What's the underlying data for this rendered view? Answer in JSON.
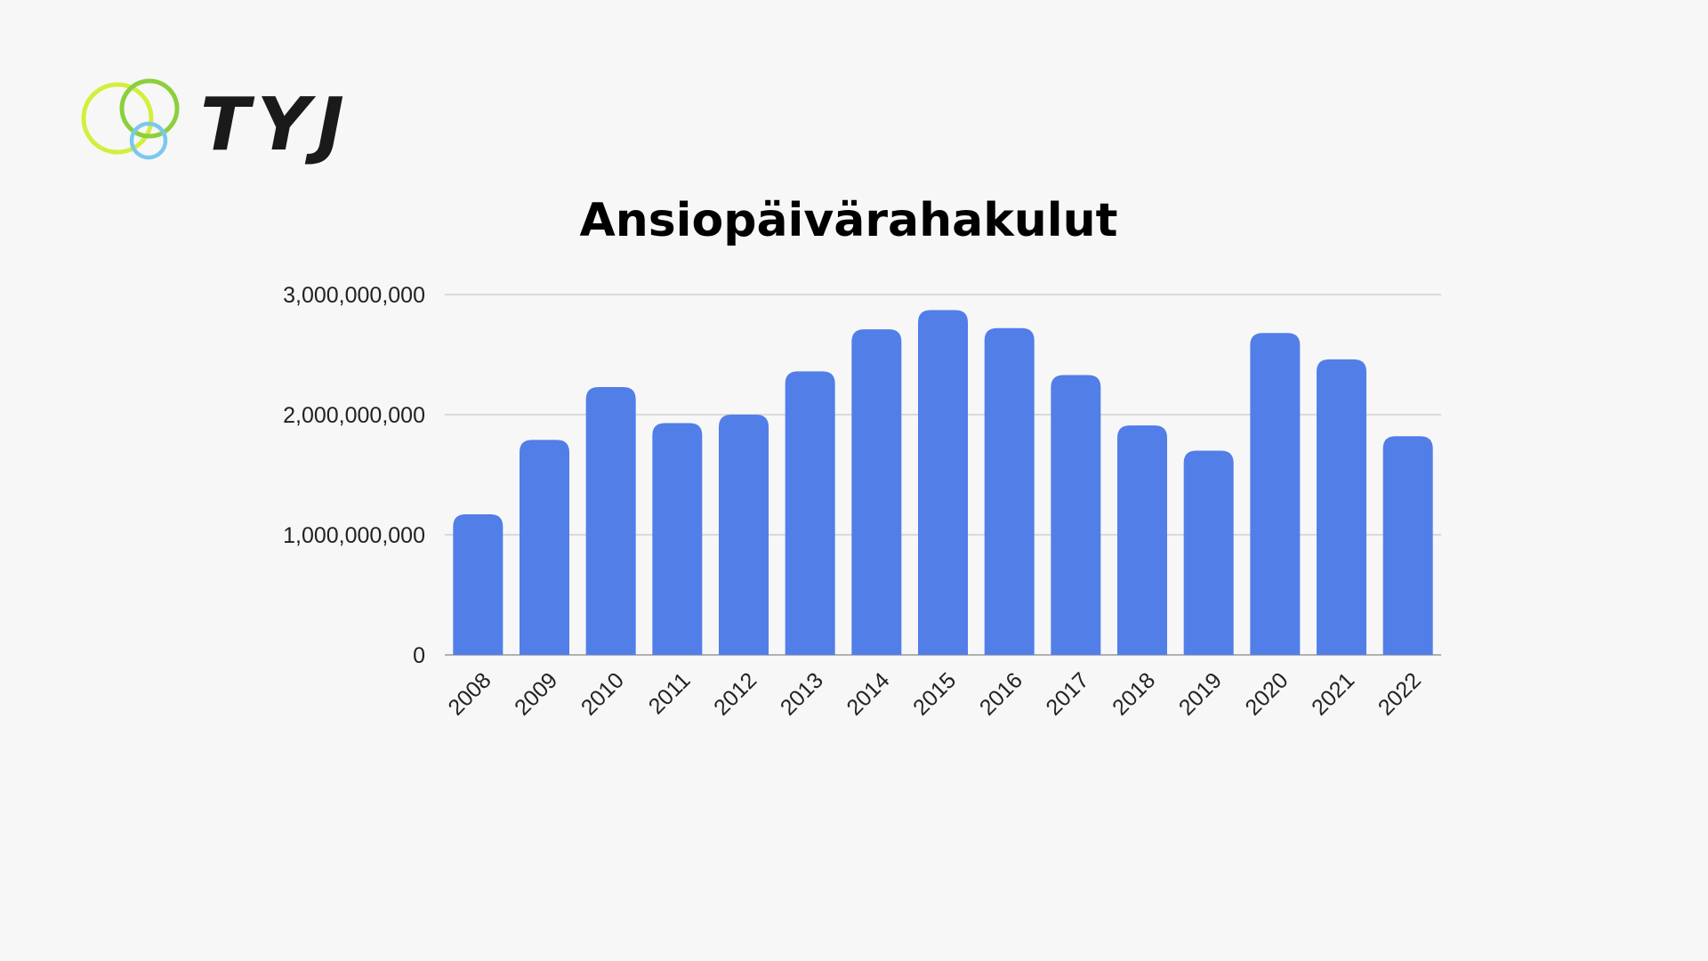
{
  "logo": {
    "text": "TYJ",
    "colors": {
      "ring_large": "#d4ee3c",
      "ring_top": "#8ccf3e",
      "ring_small": "#7cc7ee",
      "text": "#1a1a1a"
    }
  },
  "chart_data": {
    "type": "bar",
    "title": "Ansiopäivärahakulut",
    "xlabel": "",
    "ylabel": "",
    "categories": [
      "2008",
      "2009",
      "2010",
      "2011",
      "2012",
      "2013",
      "2014",
      "2015",
      "2016",
      "2017",
      "2018",
      "2019",
      "2020",
      "2021",
      "2022"
    ],
    "values": [
      1170000000,
      1790000000,
      2230000000,
      1930000000,
      2000000000,
      2360000000,
      2710000000,
      2870000000,
      2720000000,
      2330000000,
      1910000000,
      1700000000,
      2680000000,
      2460000000,
      1820000000
    ],
    "ylim": [
      0,
      3000000000
    ],
    "y_ticks": [
      0,
      1000000000,
      2000000000,
      3000000000
    ],
    "y_tick_labels": [
      "0",
      "1,000,000,000",
      "2,000,000,000",
      "3,000,000,000"
    ],
    "grid": true,
    "legend": "none",
    "bar_color": "#527ee8"
  }
}
